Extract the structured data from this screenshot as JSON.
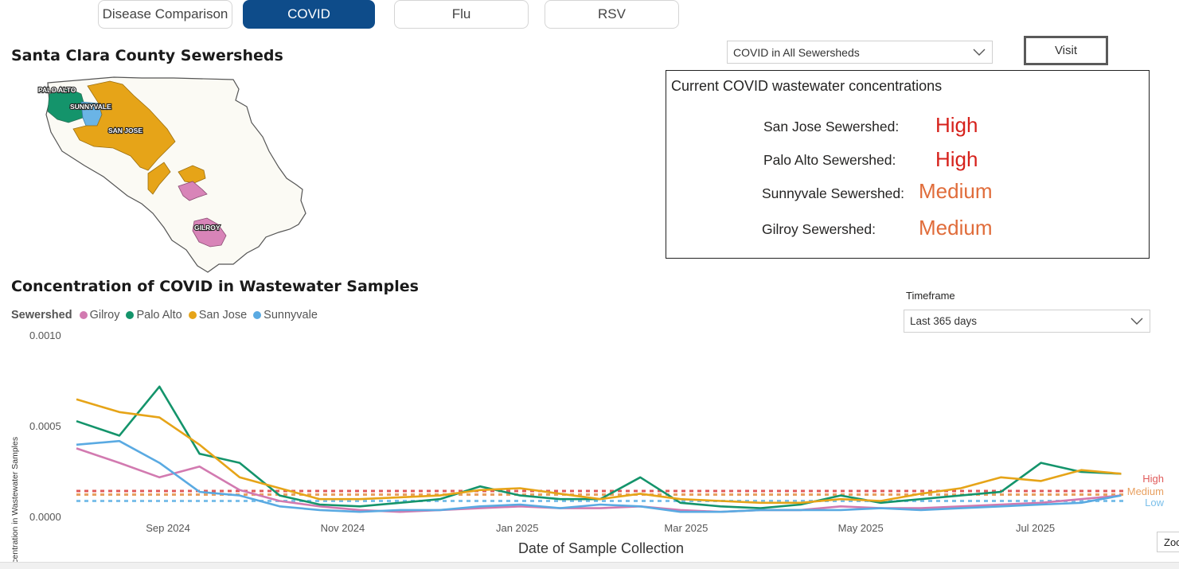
{
  "tabs": [
    {
      "label": "Disease Comparison",
      "active": false
    },
    {
      "label": "COVID",
      "active": true
    },
    {
      "label": "Flu",
      "active": false
    },
    {
      "label": "RSV",
      "active": false
    }
  ],
  "map": {
    "title": "Santa Clara County Sewersheds",
    "labels": {
      "palo_alto": "PALO ALTO",
      "sunnyvale": "SUNNYVALE",
      "san_jose": "SAN JOSE",
      "gilroy": "GILROY"
    },
    "colors": {
      "palo_alto": "#14946b",
      "sunnyvale": "#6ab4e6",
      "san_jose": "#e6a418",
      "gilroy": "#d884b8",
      "county": "#fbfaf4"
    }
  },
  "sewershed_select": {
    "value": "COVID in All Sewersheds"
  },
  "visit_button": {
    "label": "Visit"
  },
  "current": {
    "title": "Current COVID wastewater concentrations",
    "rows": [
      {
        "label": "San Jose Sewershed:",
        "level": "High",
        "color": "#d6221c"
      },
      {
        "label": "Palo Alto Sewershed:",
        "level": "High",
        "color": "#d6221c"
      },
      {
        "label": "Sunnyvale Sewershed:",
        "level": "Medium",
        "color": "#e06c3a"
      },
      {
        "label": "Gilroy Sewershed:",
        "level": "Medium",
        "color": "#e06c3a"
      }
    ]
  },
  "timeframe": {
    "label": "Timeframe",
    "value": "Last 365 days"
  },
  "zoom_label": "Zoo",
  "chart_data": {
    "type": "line",
    "title": "Concentration of COVID in Wastewater Samples",
    "xlabel": "Date of Sample Collection",
    "ylabel": "Concentration in Wastewater Samples",
    "legend_title": "Sewershed",
    "legend_position": "top-left",
    "ylim": [
      0,
      0.001
    ],
    "y_ticks": [
      "0.0000",
      "0.0005",
      "0.0010"
    ],
    "x_ticks": [
      "Sep 2024",
      "Nov 2024",
      "Jan 2025",
      "Mar 2025",
      "May 2025",
      "Jul 2025"
    ],
    "x_range": [
      "2024-07-31",
      "2025-08-01"
    ],
    "x_tick_dates": [
      "2024-09-01",
      "2024-11-01",
      "2025-01-01",
      "2025-03-01",
      "2025-05-01",
      "2025-07-01"
    ],
    "x": [
      "2024-07-31",
      "2024-08-15",
      "2024-08-29",
      "2024-09-12",
      "2024-09-26",
      "2024-10-10",
      "2024-10-24",
      "2024-11-07",
      "2024-11-21",
      "2024-12-05",
      "2024-12-19",
      "2025-01-02",
      "2025-01-16",
      "2025-01-30",
      "2025-02-13",
      "2025-02-27",
      "2025-03-13",
      "2025-03-27",
      "2025-04-10",
      "2025-04-24",
      "2025-05-08",
      "2025-05-22",
      "2025-06-05",
      "2025-06-19",
      "2025-07-03",
      "2025-07-17",
      "2025-07-31"
    ],
    "thresholds": [
      {
        "name": "High",
        "value": 0.000145,
        "color": "#e05a5a"
      },
      {
        "name": "Medium",
        "value": 0.000125,
        "color": "#e8a060"
      },
      {
        "name": "Low",
        "value": 9e-05,
        "color": "#7cc0ea"
      }
    ],
    "series": [
      {
        "name": "Gilroy",
        "color": "#d27ab0",
        "values": [
          0.00038,
          0.0003,
          0.00022,
          0.00028,
          0.00015,
          9e-05,
          6e-05,
          4e-05,
          3e-05,
          4e-05,
          5e-05,
          6e-05,
          5e-05,
          5e-05,
          6e-05,
          4e-05,
          3e-05,
          4e-05,
          4e-05,
          6e-05,
          5e-05,
          5e-05,
          6e-05,
          7e-05,
          8e-05,
          0.0001,
          0.00012
        ]
      },
      {
        "name": "Palo Alto",
        "color": "#14946b",
        "values": [
          0.00053,
          0.00045,
          0.00072,
          0.00035,
          0.0003,
          0.00012,
          7e-05,
          6e-05,
          8e-05,
          0.0001,
          0.00017,
          0.00012,
          0.0001,
          0.0001,
          0.00022,
          8e-05,
          6e-05,
          5e-05,
          7e-05,
          0.00012,
          8e-05,
          0.0001,
          0.00012,
          0.00014,
          0.0003,
          0.00025,
          0.00024
        ]
      },
      {
        "name": "San Jose",
        "color": "#e6a418",
        "values": [
          0.00065,
          0.00058,
          0.00055,
          0.0004,
          0.00022,
          0.00016,
          0.0001,
          0.0001,
          0.00011,
          0.00012,
          0.00015,
          0.00016,
          0.00013,
          0.0001,
          0.00013,
          0.0001,
          9e-05,
          8e-05,
          8e-05,
          0.0001,
          9e-05,
          0.00013,
          0.00016,
          0.00022,
          0.0002,
          0.00026,
          0.00024
        ]
      },
      {
        "name": "Sunnyvale",
        "color": "#5aaae2",
        "values": [
          0.0004,
          0.00042,
          0.0003,
          0.00014,
          0.00012,
          6e-05,
          4e-05,
          3e-05,
          4e-05,
          4e-05,
          6e-05,
          7e-05,
          5e-05,
          7e-05,
          6e-05,
          3e-05,
          3e-05,
          4e-05,
          4e-05,
          4e-05,
          5e-05,
          4e-05,
          5e-05,
          6e-05,
          7e-05,
          8e-05,
          0.00012
        ]
      }
    ]
  }
}
